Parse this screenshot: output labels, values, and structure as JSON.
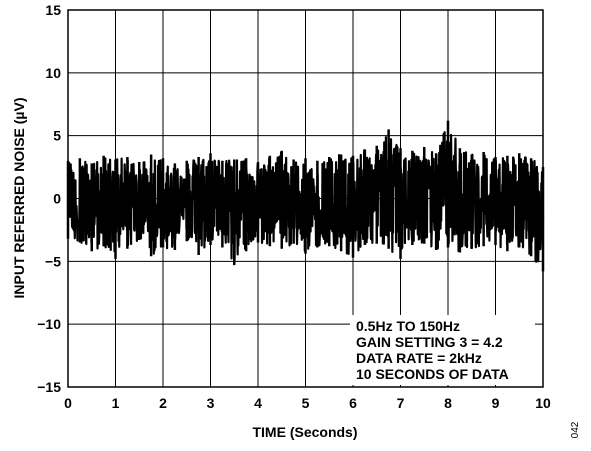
{
  "chart_data": {
    "type": "line",
    "xlabel": "TIME (Seconds)",
    "ylabel": "INPUT REFERRED NOISE (µV)",
    "xlim": [
      0,
      10
    ],
    "ylim": [
      -15,
      15
    ],
    "x_ticks": [
      "0",
      "1",
      "2",
      "3",
      "4",
      "5",
      "6",
      "7",
      "8",
      "9",
      "10"
    ],
    "y_ticks": [
      "15",
      "10",
      "5",
      "0",
      "−5",
      "−10",
      "−15"
    ],
    "grid": true,
    "annotation": [
      "0.5Hz TO 150Hz",
      "GAIN SETTING 3 = 4.2",
      "DATA RATE = 2kHz",
      "10 SECONDS OF DATA"
    ],
    "series": [
      {
        "x": [
          0.0,
          0.25,
          0.5,
          0.75,
          1.0,
          1.25,
          1.5,
          1.75,
          2.0,
          2.25,
          2.5,
          2.75,
          3.0,
          3.25,
          3.5,
          3.75,
          4.0,
          4.25,
          4.5,
          4.75,
          5.0,
          5.25,
          5.5,
          5.75,
          6.0,
          6.25,
          6.5,
          6.75,
          7.0,
          7.25,
          7.5,
          7.75,
          8.0,
          8.25,
          8.5,
          8.75,
          9.0,
          9.25,
          9.5,
          9.75,
          10.0
        ],
        "y_max": [
          3.0,
          3.2,
          2.8,
          3.4,
          3.1,
          3.3,
          2.9,
          3.5,
          3.2,
          2.8,
          3.0,
          3.3,
          3.6,
          3.0,
          3.1,
          3.2,
          2.9,
          3.4,
          3.8,
          3.1,
          3.2,
          3.0,
          3.3,
          3.5,
          3.4,
          3.9,
          4.2,
          5.5,
          4.0,
          3.8,
          4.1,
          3.6,
          6.2,
          4.0,
          3.5,
          3.7,
          3.3,
          3.4,
          3.6,
          3.2,
          2.5
        ],
        "y_min": [
          -3.2,
          -3.5,
          -4.2,
          -3.8,
          -4.8,
          -4.0,
          -3.3,
          -4.6,
          -3.9,
          -4.1,
          -3.4,
          -4.5,
          -3.7,
          -3.9,
          -5.3,
          -4.2,
          -3.5,
          -3.8,
          -4.0,
          -3.6,
          -4.4,
          -3.9,
          -3.8,
          -4.2,
          -4.7,
          -3.7,
          -3.6,
          -4.0,
          -4.8,
          -3.7,
          -3.6,
          -4.1,
          -3.9,
          -4.3,
          -4.0,
          -3.8,
          -3.7,
          -4.2,
          -3.9,
          -4.6,
          -5.8
        ]
      }
    ]
  },
  "figure_code": "042"
}
